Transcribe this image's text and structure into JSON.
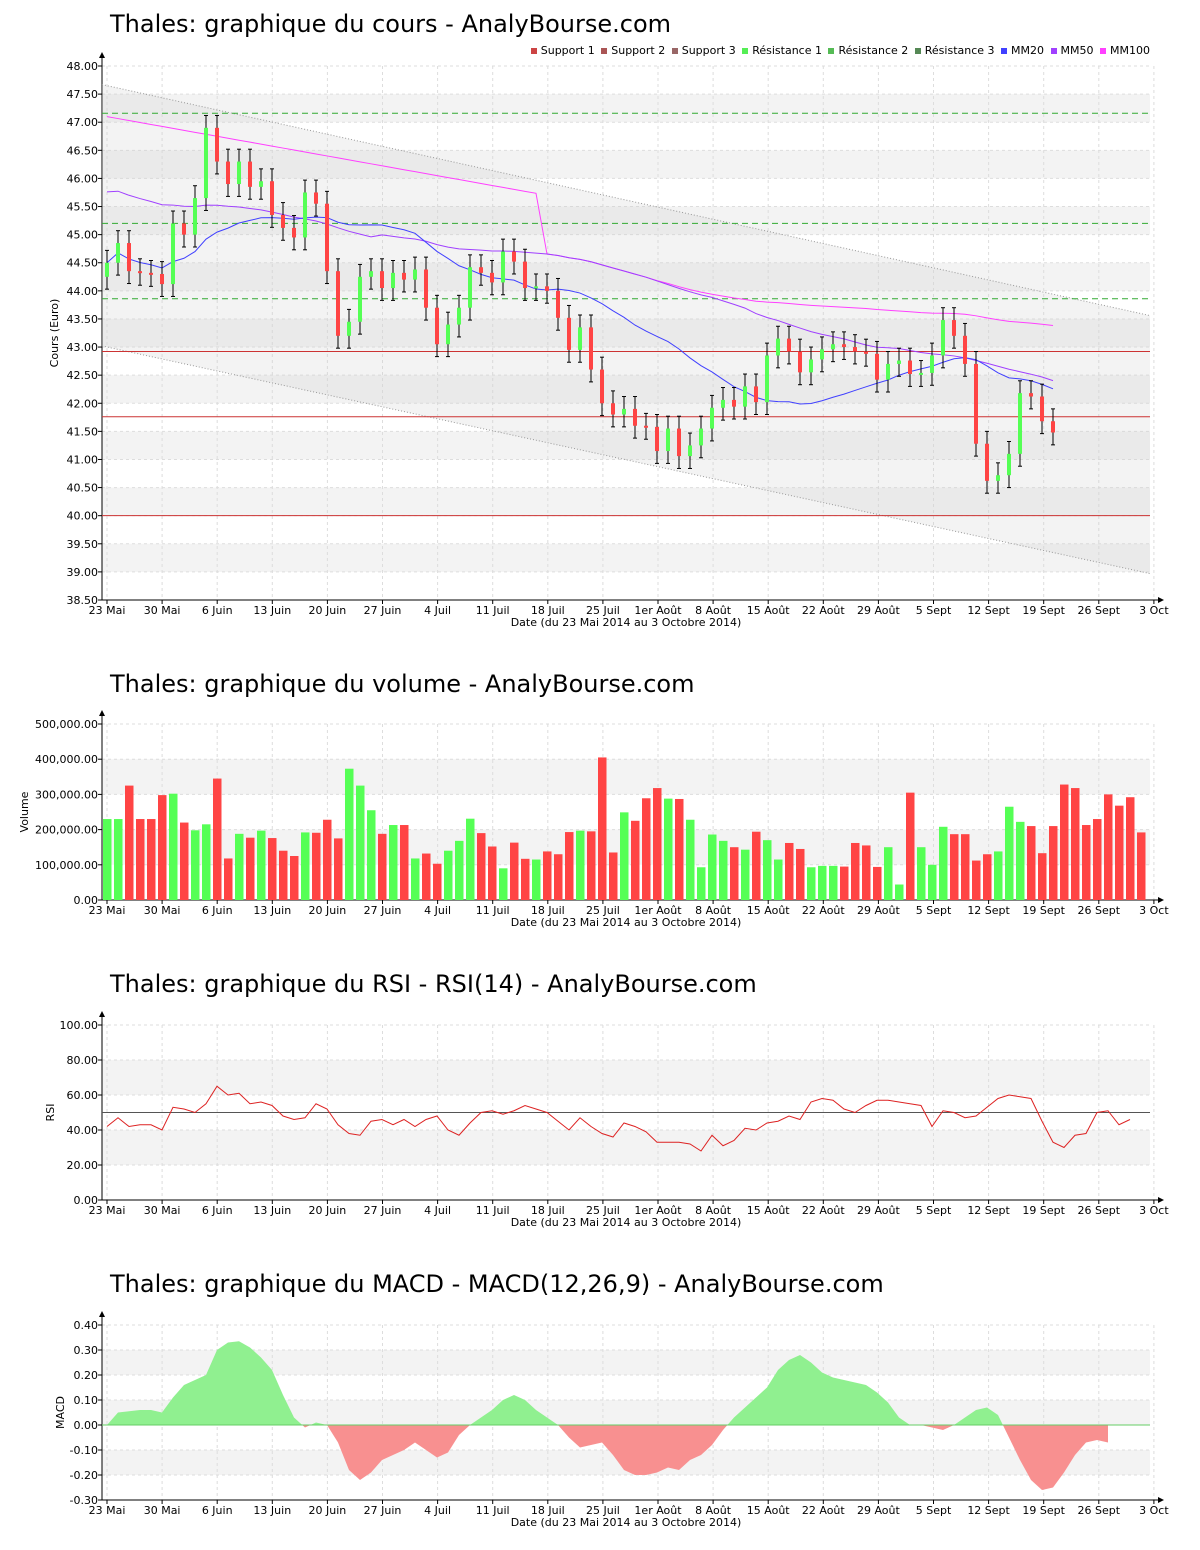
{
  "x_axis_label": "Date (du 23 Mai 2014 au 3 Octobre 2014)",
  "x_ticks": [
    "23 Mai",
    "30 Mai",
    "6 Juin",
    "13 Juin",
    "20 Juin",
    "27 Juin",
    "4 Juil",
    "11 Juil",
    "18 Juil",
    "25 Juil",
    "1er Août",
    "8 Août",
    "15 Août",
    "22 Août",
    "29 Août",
    "5 Sept",
    "12 Sept",
    "19 Sept",
    "26 Sept",
    "3 Oct"
  ],
  "colors": {
    "up": "#55ff55",
    "down": "#ff4444",
    "mm20": "#4040ff",
    "mm50": "#a040ff",
    "mm100": "#ff40ff",
    "support": "#cc3333",
    "resistance": "#33aa33",
    "rsi": "#dd2222",
    "macd_pos": "#90f090",
    "macd_neg": "#f89090"
  },
  "chart_data": [
    {
      "type": "candlestick",
      "title": "Thales: graphique du cours - AnalyBourse.com",
      "ylabel": "Cours (Euro)",
      "ylim": [
        38.5,
        48.0
      ],
      "yticks": [
        "38.50",
        "39.00",
        "39.50",
        "40.00",
        "40.50",
        "41.00",
        "41.50",
        "42.00",
        "42.50",
        "43.00",
        "43.50",
        "44.00",
        "44.50",
        "45.00",
        "45.50",
        "46.00",
        "46.50",
        "47.00",
        "47.50",
        "48.00"
      ],
      "legend": [
        "Support 1",
        "Support 2",
        "Support 3",
        "Résistance 1",
        "Résistance 2",
        "Résistance 3",
        "MM20",
        "MM50",
        "MM100"
      ],
      "supports": [
        42.92,
        41.76,
        40.0
      ],
      "resistances": [
        43.86,
        45.2,
        47.16
      ],
      "closes": [
        44.5,
        44.85,
        44.35,
        44.32,
        44.3,
        44.12,
        45.2,
        45.0,
        45.65,
        46.9,
        46.3,
        45.9,
        46.3,
        45.85,
        45.95,
        45.35,
        45.12,
        44.95,
        45.75,
        45.55,
        44.35,
        43.2,
        43.45,
        44.25,
        44.35,
        44.05,
        44.32,
        44.2,
        44.38,
        43.7,
        43.05,
        43.4,
        43.7,
        44.42,
        44.32,
        44.15,
        44.7,
        44.52,
        44.05,
        44.08,
        44.0,
        43.52,
        42.95,
        43.35,
        42.6,
        42.0,
        41.8,
        41.9,
        41.6,
        41.58,
        41.15,
        41.55,
        41.06,
        41.25,
        41.55,
        41.92,
        42.06,
        41.94,
        42.3,
        42.02,
        42.85,
        43.15,
        42.92,
        42.55,
        42.78,
        42.96,
        43.05,
        43.0,
        42.92,
        42.88,
        42.42,
        42.7,
        42.76,
        42.52,
        42.54,
        42.85,
        43.48,
        43.2,
        42.7,
        41.28,
        40.62,
        40.72,
        41.1,
        42.18,
        42.12,
        41.68,
        41.48
      ]
    },
    {
      "type": "bar",
      "title": "Thales: graphique du volume - AnalyBourse.com",
      "ylabel": "Volume",
      "ylim": [
        0,
        500000
      ],
      "yticks": [
        "0.00",
        "100,000.00",
        "200,000.00",
        "300,000.00",
        "400,000.00",
        "500,000.00"
      ],
      "values": [
        230000,
        230000,
        325000,
        230000,
        230000,
        298000,
        302000,
        220000,
        198000,
        215000,
        345000,
        118000,
        188000,
        177000,
        197000,
        176000,
        140000,
        125000,
        192000,
        191000,
        228000,
        175000,
        373000,
        325000,
        255000,
        188000,
        213000,
        213000,
        118000,
        132000,
        103000,
        140000,
        168000,
        231000,
        190000,
        152000,
        90000,
        163000,
        117000,
        115000,
        138000,
        130000,
        193000,
        197000,
        195000,
        405000,
        135000,
        249000,
        225000,
        289000,
        318000,
        288000,
        287000,
        228000,
        93000,
        186000,
        168000,
        150000,
        143000,
        194000,
        170000,
        115000,
        162000,
        145000,
        93000,
        97000,
        97000,
        95000,
        162000,
        155000,
        94000,
        150000,
        44000,
        305000,
        150000,
        100000,
        208000,
        187000,
        187000,
        112000,
        130000,
        138000,
        265000,
        222000,
        210000,
        133000,
        210000,
        328000,
        318000,
        213000,
        230000,
        300000,
        268000,
        292000,
        192000
      ]
    },
    {
      "type": "line",
      "title": "Thales: graphique du RSI - RSI(14) - AnalyBourse.com",
      "ylabel": "RSI",
      "ylim": [
        0,
        100
      ],
      "yticks": [
        "0.00",
        "20.00",
        "40.00",
        "60.00",
        "80.00",
        "100.00"
      ],
      "reference": 50,
      "values": [
        42,
        47,
        42,
        43,
        43,
        40,
        53,
        52,
        50,
        55,
        65,
        60,
        61,
        55,
        56,
        54,
        48,
        46,
        47,
        55,
        52,
        43,
        38,
        37,
        45,
        46,
        43,
        46,
        42,
        46,
        48,
        40,
        37,
        44,
        50,
        51,
        49,
        51,
        54,
        52,
        50,
        45,
        40,
        47,
        42,
        38,
        36,
        44,
        42,
        39,
        33,
        33,
        33,
        32,
        28,
        37,
        31,
        34,
        41,
        40,
        44,
        45,
        48,
        46,
        56,
        58,
        57,
        52,
        50,
        54,
        57,
        57,
        56,
        55,
        54,
        42,
        51,
        50,
        47,
        48,
        53,
        58,
        60,
        59,
        58,
        45,
        33,
        30,
        37,
        38,
        50,
        51,
        43,
        46
      ]
    },
    {
      "type": "area",
      "title": "Thales: graphique du MACD - MACD(12,26,9) - AnalyBourse.com",
      "ylabel": "MACD",
      "ylim": [
        -0.3,
        0.4
      ],
      "yticks": [
        "-0.30",
        "-0.20",
        "-0.10",
        "0.00",
        "0.10",
        "0.20",
        "0.30",
        "0.40"
      ],
      "values": [
        0.0,
        0.05,
        0.055,
        0.06,
        0.06,
        0.05,
        0.11,
        0.16,
        0.18,
        0.2,
        0.3,
        0.33,
        0.335,
        0.31,
        0.27,
        0.22,
        0.12,
        0.03,
        -0.01,
        0.01,
        0.0,
        -0.07,
        -0.18,
        -0.22,
        -0.19,
        -0.14,
        -0.12,
        -0.1,
        -0.07,
        -0.1,
        -0.13,
        -0.11,
        -0.04,
        0.0,
        0.03,
        0.06,
        0.1,
        0.12,
        0.1,
        0.06,
        0.03,
        0.0,
        -0.05,
        -0.09,
        -0.08,
        -0.07,
        -0.12,
        -0.18,
        -0.2,
        -0.2,
        -0.19,
        -0.17,
        -0.18,
        -0.14,
        -0.12,
        -0.08,
        -0.02,
        0.03,
        0.07,
        0.11,
        0.15,
        0.22,
        0.26,
        0.28,
        0.25,
        0.21,
        0.19,
        0.18,
        0.17,
        0.16,
        0.13,
        0.09,
        0.03,
        0.0,
        0.0,
        -0.01,
        -0.02,
        0.0,
        0.03,
        0.06,
        0.07,
        0.04,
        -0.05,
        -0.14,
        -0.22,
        -0.26,
        -0.25,
        -0.19,
        -0.12,
        -0.07,
        -0.06,
        -0.07
      ]
    }
  ]
}
